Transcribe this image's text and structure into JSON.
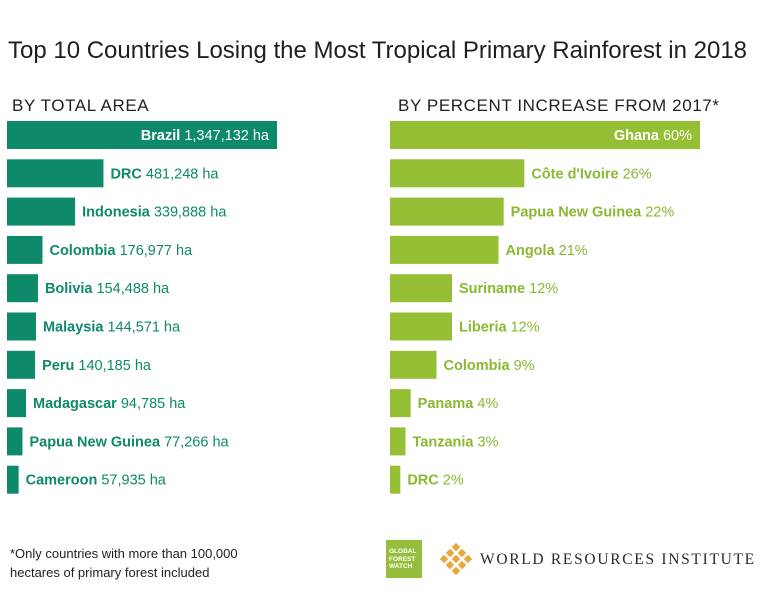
{
  "title": "Top 10 Countries Losing the Most Tropical Primary Rainforest in 2018",
  "colors": {
    "left_bar": "#0e8a6a",
    "right_bar": "#95bf35",
    "inside_label": "#ffffff",
    "left_label": "#0e8a6a",
    "right_label": "#8ab831"
  },
  "chart_data": [
    {
      "type": "bar",
      "orientation": "horizontal",
      "title": "BY TOTAL AREA",
      "unit": "ha",
      "categories": [
        "Brazil",
        "DRC",
        "Indonesia",
        "Colombia",
        "Bolivia",
        "Malaysia",
        "Peru",
        "Madagascar",
        "Papua New Guinea",
        "Cameroon"
      ],
      "values": [
        1347132,
        481248,
        339888,
        176977,
        154488,
        144571,
        140185,
        94785,
        77266,
        57935
      ],
      "value_labels": [
        "1,347,132 ha",
        "481,248 ha",
        "339,888 ha",
        "176,977 ha",
        "154,488 ha",
        "144,571 ha",
        "140,185 ha",
        "94,785 ha",
        "77,266 ha",
        "57,935 ha"
      ],
      "xlim": [
        0,
        1347132
      ]
    },
    {
      "type": "bar",
      "orientation": "horizontal",
      "title": "BY PERCENT INCREASE FROM 2017*",
      "unit": "%",
      "categories": [
        "Ghana",
        "Côte d'Ivoire",
        "Papua New Guinea",
        "Angola",
        "Suriname",
        "Liberia",
        "Colombia",
        "Panama",
        "Tanzania",
        "DRC"
      ],
      "values": [
        60,
        26,
        22,
        21,
        12,
        12,
        9,
        4,
        3,
        2
      ],
      "value_labels": [
        "60%",
        "26%",
        "22%",
        "21%",
        "12%",
        "12%",
        "9%",
        "4%",
        "3%",
        "2%"
      ],
      "xlim": [
        0,
        60
      ]
    }
  ],
  "footnote": {
    "line1": "*Only countries with more than 100,000",
    "line2": "hectares of primary forest included"
  },
  "logos": {
    "gfw_line1": "GLOBAL",
    "gfw_line2": "FOREST",
    "gfw_line3": "WATCH",
    "wri": "WORLD RESOURCES INSTITUTE"
  }
}
